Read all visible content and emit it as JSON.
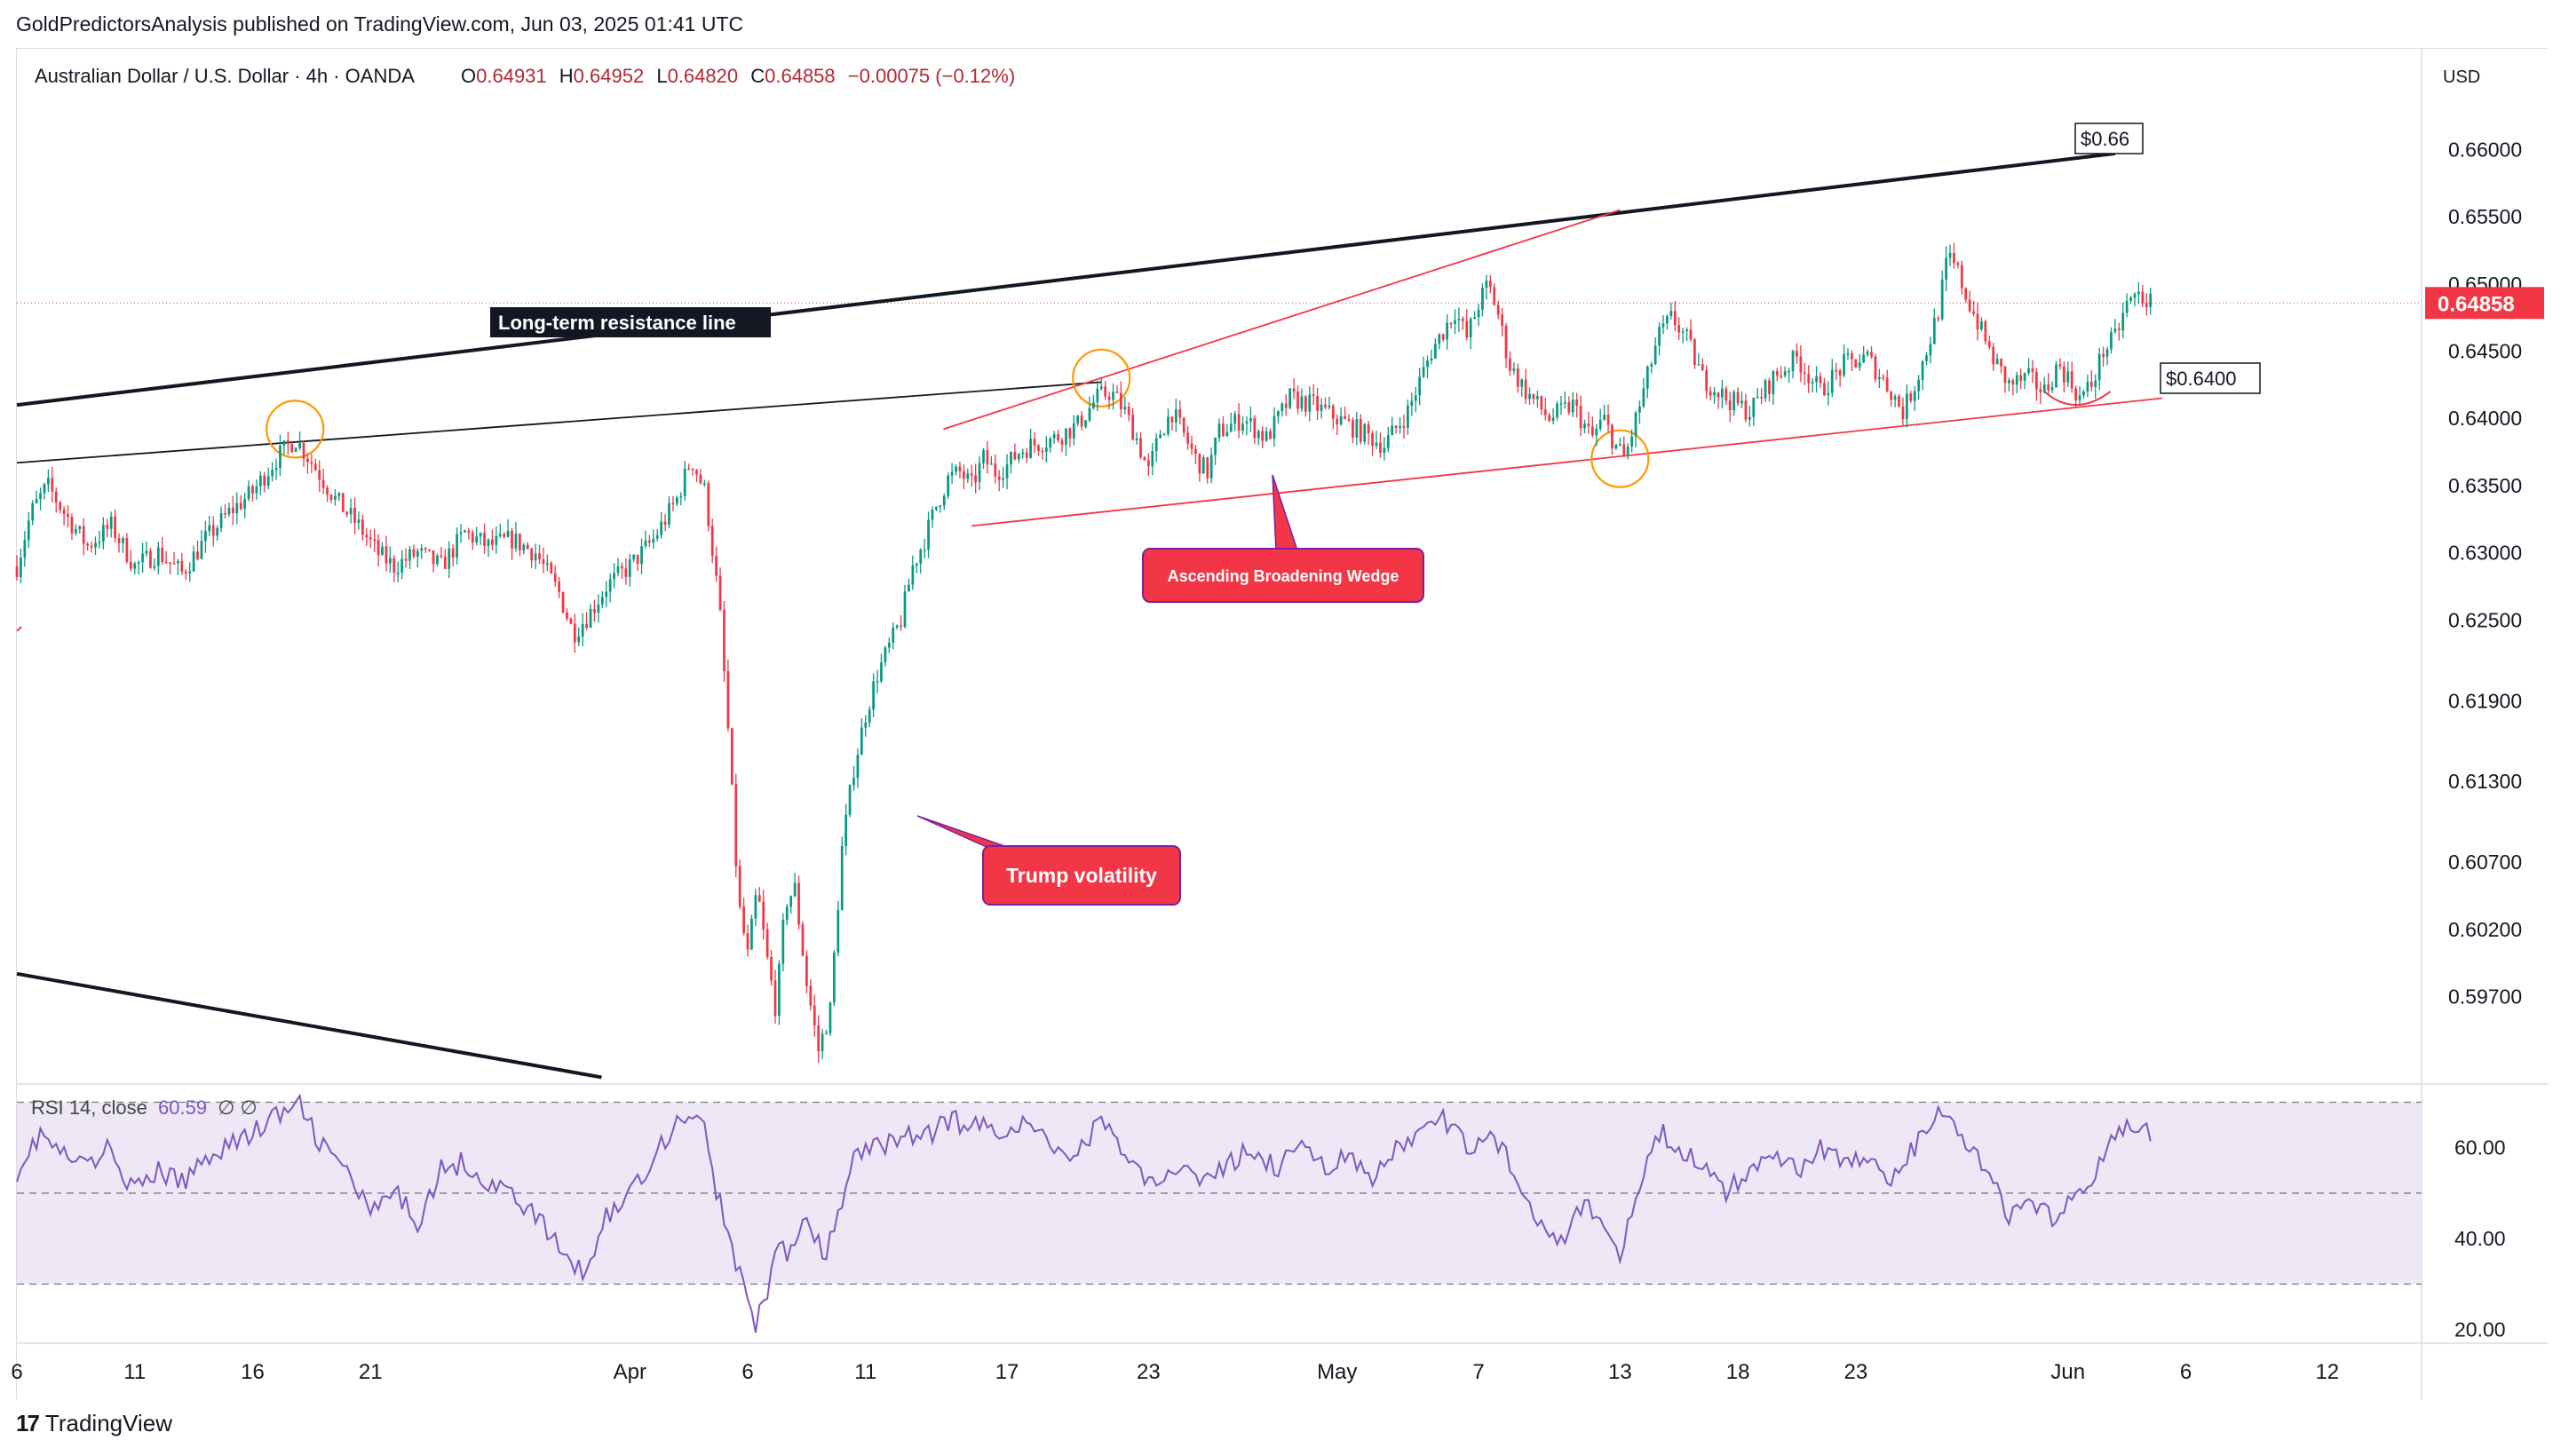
{
  "publisher_line": "GoldPredictorsAnalysis published on TradingView.com, Jun 03, 2025 01:41 UTC",
  "footer": {
    "brand": "TradingView",
    "logo_icon": "tradingview-logo-icon"
  },
  "colors": {
    "bull": "#089981",
    "bear": "#f23645",
    "resistance": "#131722",
    "wedge": "#f23645",
    "rsi": "#7e57c2",
    "rsi_band": "#ede7f6",
    "circle": "#ff9800",
    "price_tag": "#f23645"
  },
  "chart_data": [
    {
      "type": "candlestick",
      "title": "Australian Dollar / U.S. Dollar · 4h · OANDA",
      "ohlc_header": {
        "open_label": "O",
        "open": "0.64931",
        "high_label": "H",
        "high": "0.64952",
        "low_label": "L",
        "low": "0.64820",
        "close_label": "C",
        "close": "0.64858",
        "change": "−0.00075 (−0.12%)"
      },
      "currency": "USD",
      "last_price": "0.64858",
      "ylim": [
        0.5905,
        0.6655
      ],
      "y_ticks": [
        "0.66000",
        "0.65500",
        "0.65000",
        "0.64500",
        "0.64000",
        "0.63500",
        "0.63000",
        "0.62500",
        "0.61900",
        "0.61300",
        "0.60700",
        "0.60200",
        "0.59700"
      ],
      "y_tick_values": [
        0.66,
        0.655,
        0.65,
        0.645,
        0.64,
        0.635,
        0.63,
        0.625,
        0.619,
        0.613,
        0.607,
        0.602,
        0.597
      ],
      "x_ticks": [
        {
          "label": "6",
          "day": 5
        },
        {
          "label": "11",
          "day": 10
        },
        {
          "label": "16",
          "day": 15
        },
        {
          "label": "21",
          "day": 20
        },
        {
          "label": "Apr",
          "day": 31
        },
        {
          "label": "6",
          "day": 36
        },
        {
          "label": "11",
          "day": 41
        },
        {
          "label": "17",
          "day": 47
        },
        {
          "label": "23",
          "day": 53
        },
        {
          "label": "May",
          "day": 61
        },
        {
          "label": "7",
          "day": 67
        },
        {
          "label": "13",
          "day": 73
        },
        {
          "label": "18",
          "day": 78
        },
        {
          "label": "23",
          "day": 83
        },
        {
          "label": "Jun",
          "day": 92
        },
        {
          "label": "6",
          "day": 97
        },
        {
          "label": "12",
          "day": 103
        }
      ],
      "x_range_days": [
        5.0,
        107.0
      ],
      "close_path": [
        [
          5.0,
          0.629
        ],
        [
          5.6,
          0.633
        ],
        [
          6.3,
          0.635
        ],
        [
          7.0,
          0.633
        ],
        [
          8.0,
          0.6305
        ],
        [
          9.0,
          0.632
        ],
        [
          10.0,
          0.629
        ],
        [
          11.0,
          0.63
        ],
        [
          12.0,
          0.6285
        ],
        [
          13.0,
          0.631
        ],
        [
          14.0,
          0.633
        ],
        [
          15.0,
          0.6345
        ],
        [
          16.0,
          0.637
        ],
        [
          16.8,
          0.6385
        ],
        [
          17.6,
          0.6365
        ],
        [
          18.5,
          0.634
        ],
        [
          19.5,
          0.632
        ],
        [
          20.3,
          0.63
        ],
        [
          21.0,
          0.629
        ],
        [
          22.0,
          0.63
        ],
        [
          23.0,
          0.629
        ],
        [
          24.0,
          0.6315
        ],
        [
          25.0,
          0.6305
        ],
        [
          26.0,
          0.631
        ],
        [
          27.0,
          0.63
        ],
        [
          28.0,
          0.627
        ],
        [
          28.6,
          0.624
        ],
        [
          29.3,
          0.6255
        ],
        [
          30.0,
          0.6275
        ],
        [
          31.0,
          0.629
        ],
        [
          32.0,
          0.631
        ],
        [
          33.0,
          0.634
        ],
        [
          33.6,
          0.637
        ],
        [
          34.2,
          0.6345
        ],
        [
          34.8,
          0.626
        ],
        [
          35.2,
          0.616
        ],
        [
          35.6,
          0.604
        ],
        [
          36.0,
          0.6
        ],
        [
          36.4,
          0.605
        ],
        [
          36.8,
          0.6
        ],
        [
          37.2,
          0.596
        ],
        [
          37.6,
          0.604
        ],
        [
          38.0,
          0.605
        ],
        [
          38.5,
          0.598
        ],
        [
          39.0,
          0.593
        ],
        [
          39.5,
          0.596
        ],
        [
          40.0,
          0.608
        ],
        [
          40.5,
          0.614
        ],
        [
          41.0,
          0.618
        ],
        [
          41.5,
          0.621
        ],
        [
          42.0,
          0.623
        ],
        [
          42.5,
          0.625
        ],
        [
          43.0,
          0.629
        ],
        [
          43.5,
          0.631
        ],
        [
          44.0,
          0.6335
        ],
        [
          44.5,
          0.6355
        ],
        [
          45.0,
          0.636
        ],
        [
          45.5,
          0.635
        ],
        [
          46.0,
          0.637
        ],
        [
          46.5,
          0.636
        ],
        [
          47.0,
          0.6365
        ],
        [
          47.5,
          0.6375
        ],
        [
          48.0,
          0.638
        ],
        [
          49.0,
          0.6385
        ],
        [
          50.0,
          0.6395
        ],
        [
          50.8,
          0.6415
        ],
        [
          51.4,
          0.642
        ],
        [
          52.0,
          0.6405
        ],
        [
          52.5,
          0.6385
        ],
        [
          53.0,
          0.636
        ],
        [
          53.5,
          0.639
        ],
        [
          54.0,
          0.6405
        ],
        [
          55.0,
          0.637
        ],
        [
          55.5,
          0.636
        ],
        [
          56.0,
          0.639
        ],
        [
          57.0,
          0.64
        ],
        [
          58.0,
          0.6385
        ],
        [
          59.0,
          0.6415
        ],
        [
          60.0,
          0.641
        ],
        [
          61.0,
          0.64
        ],
        [
          62.0,
          0.639
        ],
        [
          63.0,
          0.638
        ],
        [
          64.0,
          0.6405
        ],
        [
          65.0,
          0.645
        ],
        [
          66.0,
          0.648
        ],
        [
          66.5,
          0.646
        ],
        [
          67.0,
          0.6485
        ],
        [
          67.4,
          0.65
        ],
        [
          67.8,
          0.648
        ],
        [
          68.3,
          0.644
        ],
        [
          69.0,
          0.642
        ],
        [
          70.0,
          0.64
        ],
        [
          71.0,
          0.641
        ],
        [
          71.8,
          0.6385
        ],
        [
          72.3,
          0.64
        ],
        [
          72.8,
          0.638
        ],
        [
          73.2,
          0.637
        ],
        [
          73.6,
          0.6395
        ],
        [
          74.0,
          0.642
        ],
        [
          74.6,
          0.646
        ],
        [
          75.2,
          0.6475
        ],
        [
          75.8,
          0.646
        ],
        [
          76.5,
          0.643
        ],
        [
          77.5,
          0.6415
        ],
        [
          78.5,
          0.6405
        ],
        [
          79.5,
          0.643
        ],
        [
          80.5,
          0.6445
        ],
        [
          81.5,
          0.642
        ],
        [
          82.5,
          0.644
        ],
        [
          83.5,
          0.6445
        ],
        [
          84.5,
          0.642
        ],
        [
          85.0,
          0.6405
        ],
        [
          85.5,
          0.6425
        ],
        [
          86.0,
          0.645
        ],
        [
          86.5,
          0.648
        ],
        [
          86.9,
          0.652
        ],
        [
          87.3,
          0.651
        ],
        [
          87.7,
          0.649
        ],
        [
          88.2,
          0.647
        ],
        [
          88.8,
          0.6445
        ],
        [
          89.5,
          0.6425
        ],
        [
          90.3,
          0.643
        ],
        [
          91.0,
          0.642
        ],
        [
          91.6,
          0.644
        ],
        [
          92.0,
          0.643
        ],
        [
          92.5,
          0.6415
        ],
        [
          93.0,
          0.6425
        ],
        [
          93.5,
          0.645
        ],
        [
          94.0,
          0.646
        ],
        [
          94.5,
          0.6485
        ],
        [
          95.0,
          0.6492
        ],
        [
          95.5,
          0.6486
        ]
      ],
      "annotations": {
        "long_term_resistance_label": "Long-term resistance line",
        "resistance_target_label": "$0.66",
        "support_label": "$0.6400",
        "wedge_label": "Ascending Broadening Wedge",
        "volatility_label": "Trump volatility"
      }
    },
    {
      "type": "line",
      "title": "RSI",
      "params": "14, close",
      "value": "60.59",
      "flags": "∅ ∅",
      "ylim": [
        17,
        74
      ],
      "y_ticks": [
        "60.00",
        "40.00",
        "20.00"
      ],
      "y_tick_values": [
        60,
        40,
        20
      ],
      "band": [
        30,
        70
      ],
      "midline": 50,
      "series": [
        [
          5.0,
          55
        ],
        [
          6.0,
          63
        ],
        [
          7.0,
          58
        ],
        [
          8.0,
          56
        ],
        [
          9.0,
          60
        ],
        [
          10.0,
          50
        ],
        [
          11.0,
          55
        ],
        [
          12.0,
          52
        ],
        [
          13.0,
          58
        ],
        [
          14.0,
          61
        ],
        [
          15.0,
          63
        ],
        [
          16.0,
          67
        ],
        [
          17.0,
          69
        ],
        [
          18.0,
          60
        ],
        [
          19.0,
          55
        ],
        [
          20.0,
          45
        ],
        [
          21.0,
          50
        ],
        [
          22.0,
          44
        ],
        [
          23.0,
          55
        ],
        [
          24.0,
          57
        ],
        [
          25.0,
          52
        ],
        [
          26.0,
          50
        ],
        [
          27.0,
          45
        ],
        [
          28.0,
          38
        ],
        [
          29.0,
          32
        ],
        [
          30.0,
          45
        ],
        [
          31.0,
          50
        ],
        [
          32.0,
          58
        ],
        [
          33.0,
          66
        ],
        [
          34.0,
          68
        ],
        [
          34.6,
          52
        ],
        [
          35.2,
          40
        ],
        [
          35.8,
          30
        ],
        [
          36.3,
          20
        ],
        [
          36.8,
          28
        ],
        [
          37.3,
          40
        ],
        [
          37.8,
          36
        ],
        [
          38.3,
          44
        ],
        [
          38.8,
          40
        ],
        [
          39.3,
          36
        ],
        [
          39.8,
          44
        ],
        [
          40.5,
          58
        ],
        [
          41.5,
          60
        ],
        [
          42.5,
          63
        ],
        [
          43.5,
          62
        ],
        [
          44.5,
          66
        ],
        [
          45.5,
          65
        ],
        [
          46.5,
          64
        ],
        [
          47.5,
          65
        ],
        [
          48.5,
          63
        ],
        [
          49.5,
          58
        ],
        [
          50.5,
          62
        ],
        [
          51.0,
          67
        ],
        [
          51.5,
          63
        ],
        [
          52.5,
          55
        ],
        [
          53.5,
          50
        ],
        [
          54.5,
          58
        ],
        [
          55.5,
          52
        ],
        [
          56.5,
          57
        ],
        [
          57.5,
          60
        ],
        [
          58.5,
          55
        ],
        [
          59.5,
          62
        ],
        [
          60.5,
          56
        ],
        [
          61.5,
          58
        ],
        [
          62.5,
          52
        ],
        [
          63.5,
          60
        ],
        [
          64.5,
          63
        ],
        [
          65.5,
          66
        ],
        [
          66.5,
          60
        ],
        [
          67.5,
          64
        ],
        [
          68.5,
          55
        ],
        [
          69.5,
          45
        ],
        [
          70.5,
          40
        ],
        [
          71.5,
          47
        ],
        [
          72.5,
          42
        ],
        [
          73.0,
          36
        ],
        [
          73.5,
          45
        ],
        [
          74.5,
          64
        ],
        [
          75.5,
          60
        ],
        [
          76.5,
          56
        ],
        [
          77.5,
          50
        ],
        [
          78.5,
          55
        ],
        [
          79.5,
          60
        ],
        [
          80.5,
          55
        ],
        [
          81.5,
          60
        ],
        [
          82.5,
          57
        ],
        [
          83.5,
          58
        ],
        [
          84.5,
          52
        ],
        [
          85.5,
          60
        ],
        [
          86.5,
          68
        ],
        [
          87.5,
          62
        ],
        [
          88.5,
          55
        ],
        [
          89.5,
          45
        ],
        [
          90.5,
          47
        ],
        [
          91.5,
          44
        ],
        [
          92.5,
          50
        ],
        [
          93.5,
          58
        ],
        [
          94.5,
          66
        ],
        [
          95.2,
          64
        ],
        [
          95.6,
          60.59
        ]
      ]
    }
  ]
}
